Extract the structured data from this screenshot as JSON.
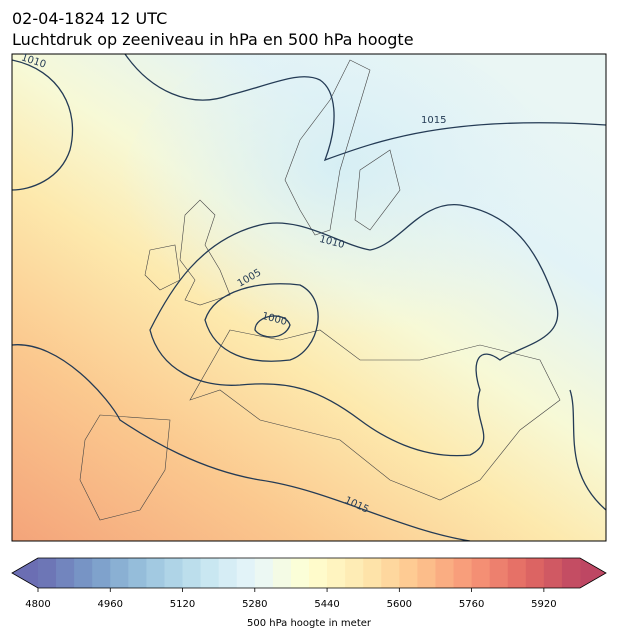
{
  "header": {
    "title": "02-04-1824 12 UTC",
    "subtitle": "Luchtdruk op zeeniveau in hPa en 500 hPa hoogte"
  },
  "contour_labels": [
    "1010",
    "1015",
    "1010",
    "1005",
    "1000",
    "1015"
  ],
  "colorbar": {
    "label": "500 hPa hoogte in meter",
    "range": [
      4800,
      6000
    ],
    "step": 40,
    "ticks": [
      4800,
      4960,
      5120,
      5280,
      5440,
      5600,
      5760,
      5920
    ]
  }
}
